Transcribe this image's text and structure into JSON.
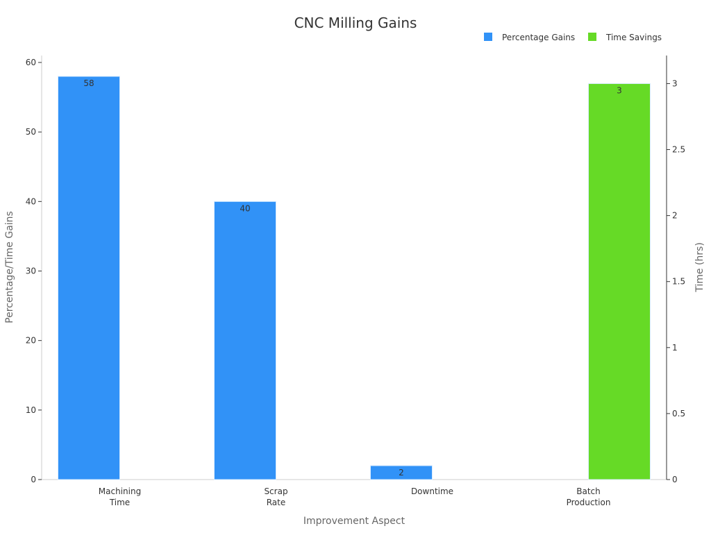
{
  "chart_data": {
    "type": "bar",
    "title": "CNC Milling Gains",
    "xlabel": "Improvement Aspect",
    "ylabel_left": "Percentage/Time Gains",
    "ylabel_right": "Time (hrs)",
    "legend_position": "top-right",
    "grid": false,
    "categories": [
      [
        "Machining",
        "Time"
      ],
      [
        "Scrap",
        "Rate"
      ],
      [
        "Downtime"
      ],
      [
        "Batch",
        "Production"
      ]
    ],
    "ylim_left": [
      0,
      60
    ],
    "ylim_right": [
      0,
      3.16
    ],
    "yticks_left": [
      0,
      10,
      20,
      30,
      40,
      50,
      60
    ],
    "yticks_right": [
      0,
      0.5,
      1,
      1.5,
      2,
      2.5,
      3
    ],
    "series": [
      {
        "name": "Percentage Gains",
        "axis": "left",
        "color": "#3192F7",
        "values": [
          58,
          40,
          2,
          null
        ]
      },
      {
        "name": "Time Savings",
        "axis": "right",
        "color": "#66DA26",
        "values": [
          null,
          null,
          null,
          3
        ]
      }
    ]
  }
}
